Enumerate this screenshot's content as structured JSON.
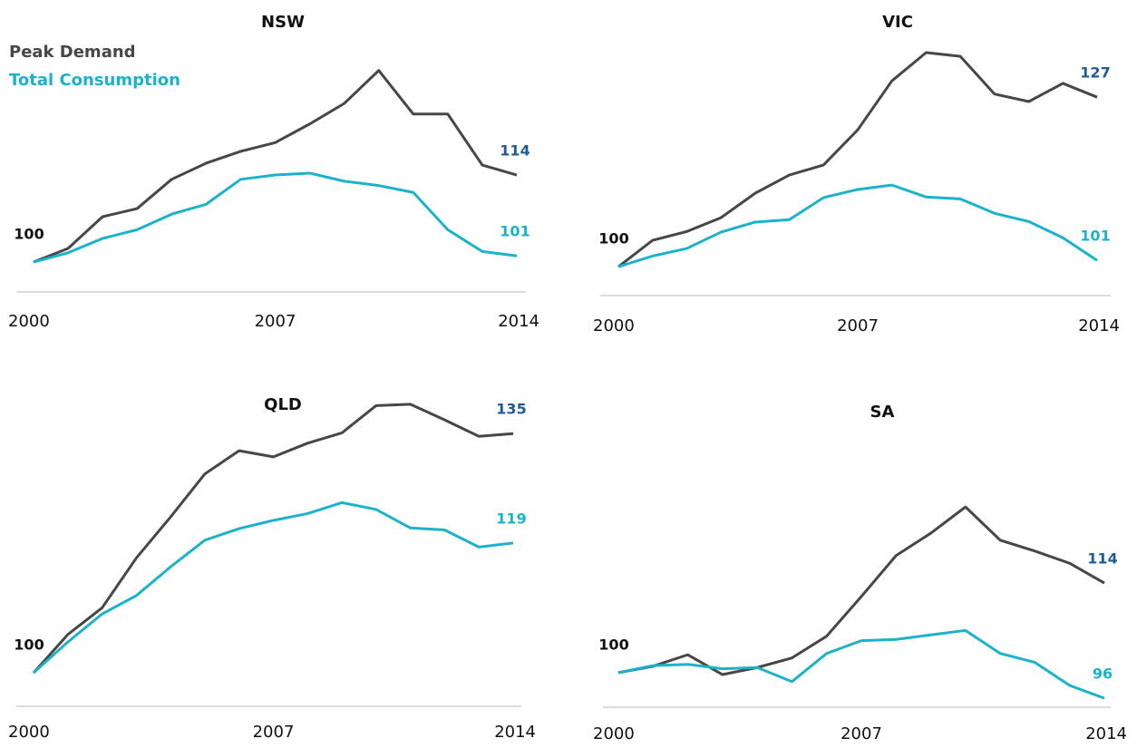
{
  "chart_data": [
    {
      "type": "line",
      "title": "NSW",
      "legend": "upper left",
      "x": [
        2000,
        2001,
        2002,
        2003,
        2004,
        2005,
        2006,
        2007,
        2008,
        2009,
        2010,
        2011,
        2012,
        2013,
        2014
      ],
      "xlim": [
        2000,
        2014
      ],
      "xticks": [
        2000,
        2007,
        2014
      ],
      "ylim": [
        95.2,
        136.3
      ],
      "series": [
        {
          "name": "Peak Demand",
          "color": "#4a4546",
          "label_color": "#1f5c96",
          "values": [
            100,
            102.2,
            107.3,
            108.6,
            113.3,
            115.9,
            117.8,
            119.2,
            122.2,
            125.5,
            130.8,
            123.8,
            123.8,
            115.6,
            114
          ],
          "value_labels": [
            "100",
            null,
            null,
            null,
            null,
            null,
            null,
            null,
            null,
            null,
            null,
            null,
            null,
            null,
            "114"
          ]
        },
        {
          "name": "Total Consumption",
          "color": "#1ab3cb",
          "label_color": "#1ab3cb",
          "values": [
            100,
            101.5,
            103.8,
            105.2,
            107.7,
            109.3,
            113.3,
            114,
            114.3,
            113,
            112.3,
            111.2,
            105.2,
            101.7,
            101
          ],
          "value_labels": [
            null,
            null,
            null,
            null,
            null,
            null,
            null,
            null,
            null,
            null,
            null,
            null,
            null,
            null,
            "101"
          ]
        }
      ]
    },
    {
      "type": "line",
      "title": "VIC",
      "x": [
        2000,
        2001,
        2002,
        2003,
        2004,
        2005,
        2006,
        2007,
        2008,
        2009,
        2010,
        2011,
        2012,
        2013,
        2014
      ],
      "xlim": [
        2000,
        2014
      ],
      "xticks": [
        2000,
        2007,
        2014
      ],
      "ylim": [
        95.4,
        136.7
      ],
      "series": [
        {
          "name": "Peak Demand",
          "color": "#4a4546",
          "label_color": "#1f5c96",
          "values": [
            100,
            104.2,
            105.6,
            107.8,
            111.7,
            114.6,
            116.2,
            121.8,
            129.6,
            134.1,
            133.5,
            127.5,
            126.3,
            129.2,
            127
          ],
          "value_labels": [
            "100",
            null,
            null,
            null,
            null,
            null,
            null,
            null,
            null,
            null,
            null,
            null,
            null,
            null,
            "127"
          ]
        },
        {
          "name": "Total Consumption",
          "color": "#1ab3cb",
          "label_color": "#1ab3cb",
          "values": [
            100,
            101.7,
            102.9,
            105.5,
            107.1,
            107.5,
            111,
            112.3,
            113,
            111.1,
            110.8,
            108.5,
            107.2,
            104.6,
            101
          ],
          "value_labels": [
            null,
            null,
            null,
            null,
            null,
            null,
            null,
            null,
            null,
            null,
            null,
            null,
            null,
            null,
            "101"
          ]
        }
      ]
    },
    {
      "type": "line",
      "title": "QLD",
      "x": [
        2000,
        2001,
        2002,
        2003,
        2004,
        2005,
        2006,
        2007,
        2008,
        2009,
        2010,
        2011,
        2012,
        2013,
        2014
      ],
      "xlim": [
        2000,
        2014
      ],
      "xticks": [
        2000,
        2007,
        2014
      ],
      "ylim": [
        95.1,
        141.4
      ],
      "series": [
        {
          "name": "Peak Demand",
          "color": "#4a4546",
          "label_color": "#1f5c96",
          "values": [
            100,
            105.6,
            109.5,
            116.8,
            122.8,
            129.1,
            132.5,
            131.6,
            133.6,
            135.1,
            139.1,
            139.3,
            137,
            134.6,
            135
          ],
          "value_labels": [
            "100",
            null,
            null,
            null,
            null,
            null,
            null,
            null,
            null,
            null,
            null,
            null,
            null,
            null,
            "135"
          ]
        },
        {
          "name": "Total Consumption",
          "color": "#1ab3cb",
          "label_color": "#1ab3cb",
          "values": [
            100,
            104.5,
            108.6,
            111.3,
            115.5,
            119.4,
            121.1,
            122.3,
            123.3,
            124.9,
            123.9,
            121.2,
            120.9,
            118.4,
            119
          ],
          "value_labels": [
            null,
            null,
            null,
            null,
            null,
            null,
            null,
            null,
            null,
            null,
            null,
            null,
            null,
            null,
            "119"
          ]
        }
      ]
    },
    {
      "type": "line",
      "title": "SA",
      "x": [
        2000,
        2001,
        2002,
        2003,
        2004,
        2005,
        2006,
        2007,
        2008,
        2009,
        2010,
        2011,
        2012,
        2013,
        2014
      ],
      "xlim": [
        2000,
        2014
      ],
      "xticks": [
        2000,
        2007,
        2014
      ],
      "ylim": [
        94.6,
        144.2
      ],
      "series": [
        {
          "name": "Peak Demand",
          "color": "#4a4546",
          "label_color": "#1f5c96",
          "values": [
            100,
            101,
            102.8,
            99.7,
            100.8,
            102.3,
            105.7,
            111.9,
            118.3,
            121.8,
            125.9,
            120.7,
            119,
            117.1,
            114
          ],
          "value_labels": [
            "100",
            null,
            null,
            null,
            null,
            null,
            null,
            null,
            null,
            null,
            null,
            null,
            null,
            null,
            "114"
          ]
        },
        {
          "name": "Total Consumption",
          "color": "#1ab3cb",
          "label_color": "#1ab3cb",
          "values": [
            100,
            101.1,
            101.3,
            100.6,
            100.8,
            98.6,
            103,
            105,
            105.2,
            105.9,
            106.6,
            103,
            101.6,
            98,
            96
          ],
          "value_labels": [
            null,
            null,
            null,
            null,
            null,
            null,
            null,
            null,
            null,
            null,
            null,
            null,
            null,
            null,
            "96"
          ]
        }
      ]
    }
  ]
}
